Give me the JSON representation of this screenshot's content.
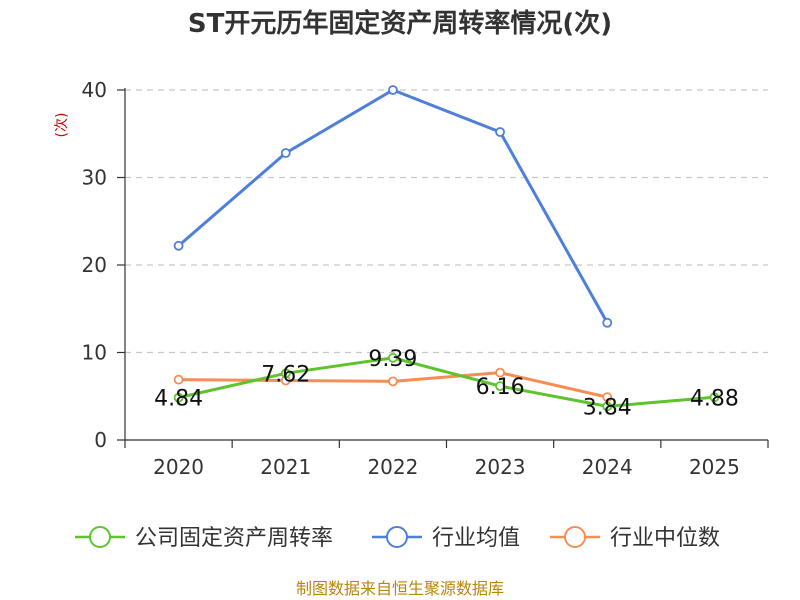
{
  "chart_data": {
    "type": "line",
    "title": "ST开元历年固定资产周转率情况(次)",
    "xlabel": "",
    "ylabel": "(次)",
    "categories": [
      "2020",
      "2021",
      "2022",
      "2023",
      "2024",
      "2025"
    ],
    "ylim": [
      0,
      40
    ],
    "yticks": [
      0,
      10,
      20,
      30,
      40
    ],
    "grid": true,
    "legend_position": "bottom",
    "series": [
      {
        "name": "公司固定资产周转率",
        "color": "#5ec32c",
        "values": [
          4.84,
          7.62,
          9.39,
          6.16,
          3.84,
          4.88
        ],
        "labels": [
          "4.84",
          "7.62",
          "9.39",
          "6.16",
          "3.84",
          "4.88"
        ]
      },
      {
        "name": "行业均值",
        "color": "#4d7fdb",
        "values": [
          22.2,
          32.8,
          40.0,
          35.2,
          13.4,
          null
        ]
      },
      {
        "name": "行业中位数",
        "color": "#f58e55",
        "values": [
          6.9,
          6.8,
          6.7,
          7.7,
          4.9,
          null
        ]
      }
    ]
  },
  "source_note": "制图数据来自恒生聚源数据库"
}
